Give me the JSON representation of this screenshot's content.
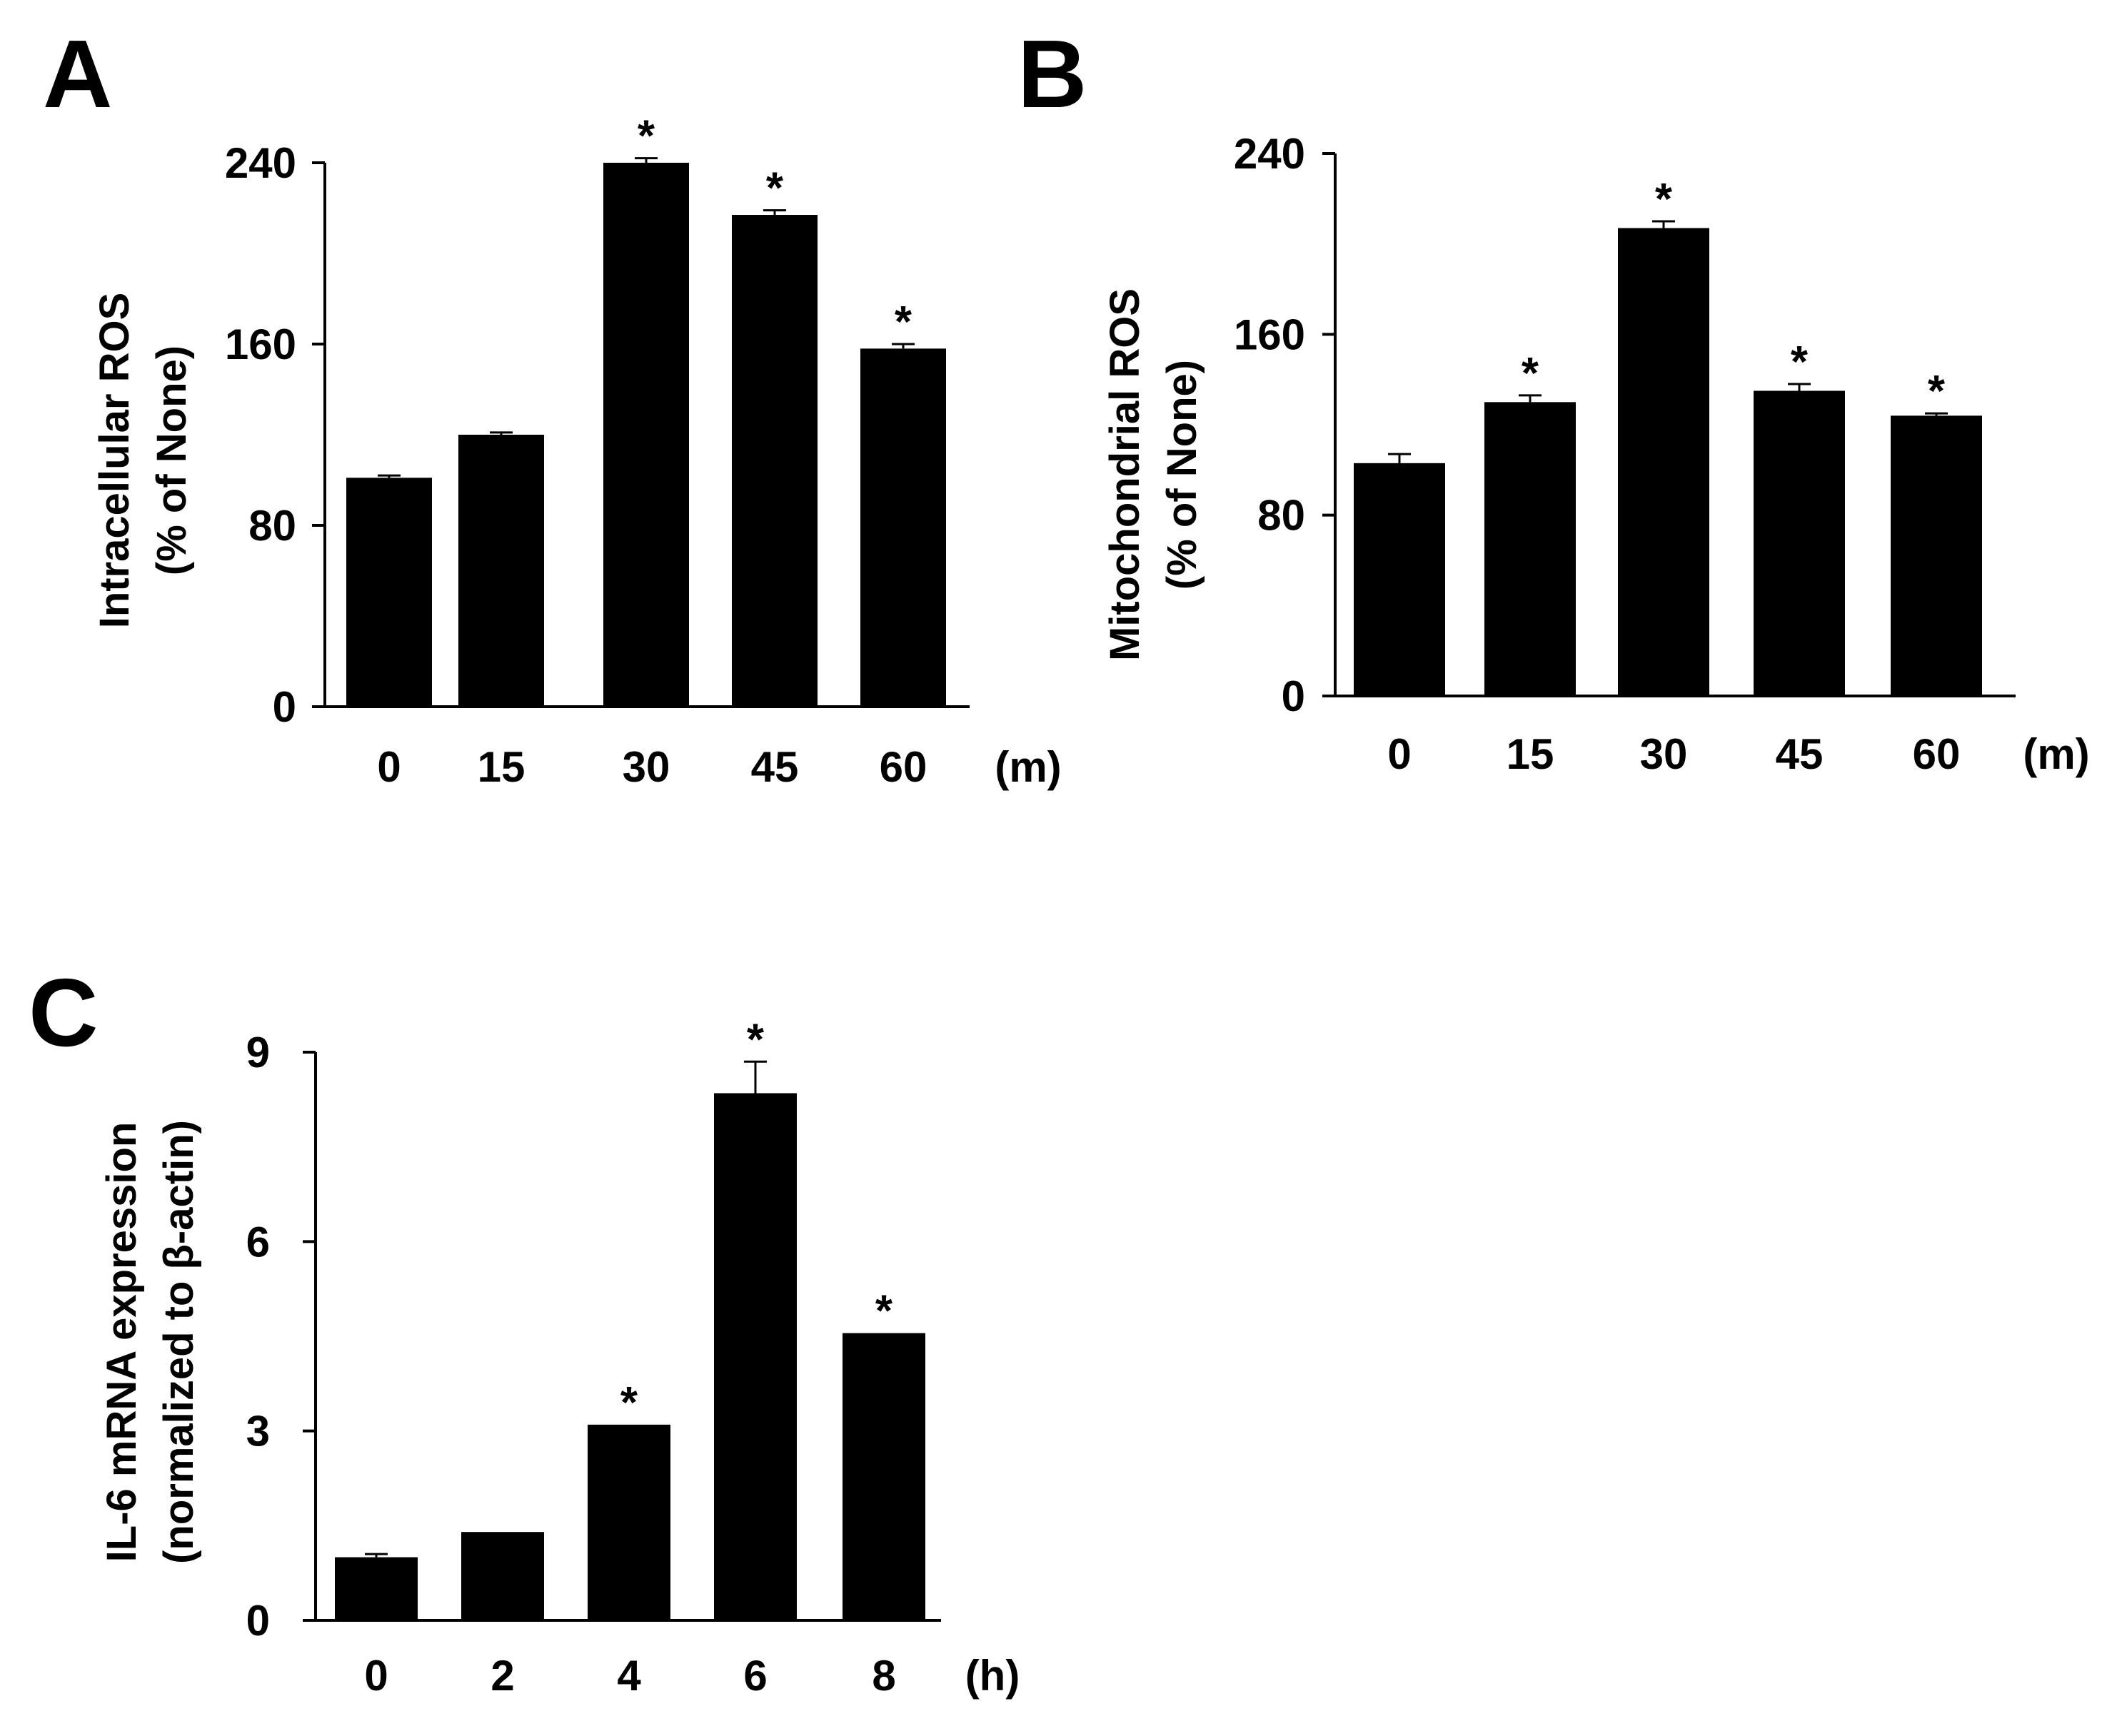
{
  "chart_data": [
    {
      "type": "bar",
      "panel": "A",
      "ylabel_line1": "Intracellular ROS",
      "ylabel_line2": "(% of None)",
      "unit": "(m)",
      "categories": [
        "0",
        "15",
        "30",
        "45",
        "60"
      ],
      "values": [
        101,
        120,
        240,
        217,
        158
      ],
      "errors": [
        1,
        1,
        2,
        2,
        2
      ],
      "significant": [
        false,
        false,
        true,
        true,
        true
      ],
      "sig_marker": "*",
      "yticks": [
        "0",
        "80",
        "160",
        "240"
      ],
      "ylim": [
        0,
        240
      ]
    },
    {
      "type": "bar",
      "panel": "B",
      "ylabel_line1": "Mitochondrial ROS",
      "ylabel_line2": "(% of None)",
      "unit": "(m)",
      "categories": [
        "0",
        "15",
        "30",
        "45",
        "60"
      ],
      "values": [
        103,
        130,
        207,
        135,
        124
      ],
      "errors": [
        4,
        3,
        3,
        3,
        1
      ],
      "significant": [
        false,
        true,
        true,
        true,
        true
      ],
      "sig_marker": "*",
      "yticks": [
        "0",
        "80",
        "160",
        "240"
      ],
      "ylim": [
        0,
        240
      ]
    },
    {
      "type": "bar",
      "panel": "C",
      "ylabel_line1": "IL-6 mRNA expression",
      "ylabel_line2": "(normalized to β-actin)",
      "unit": "(h)",
      "categories": [
        "0",
        "2",
        "4",
        "6",
        "8"
      ],
      "values": [
        1.0,
        1.4,
        3.1,
        8.35,
        4.55
      ],
      "errors": [
        0.05,
        0,
        0,
        0.5,
        0
      ],
      "significant": [
        false,
        false,
        true,
        true,
        true
      ],
      "sig_marker": "*",
      "yticks": [
        "0",
        "3",
        "6",
        "9"
      ],
      "ylim": [
        0,
        9
      ]
    }
  ]
}
